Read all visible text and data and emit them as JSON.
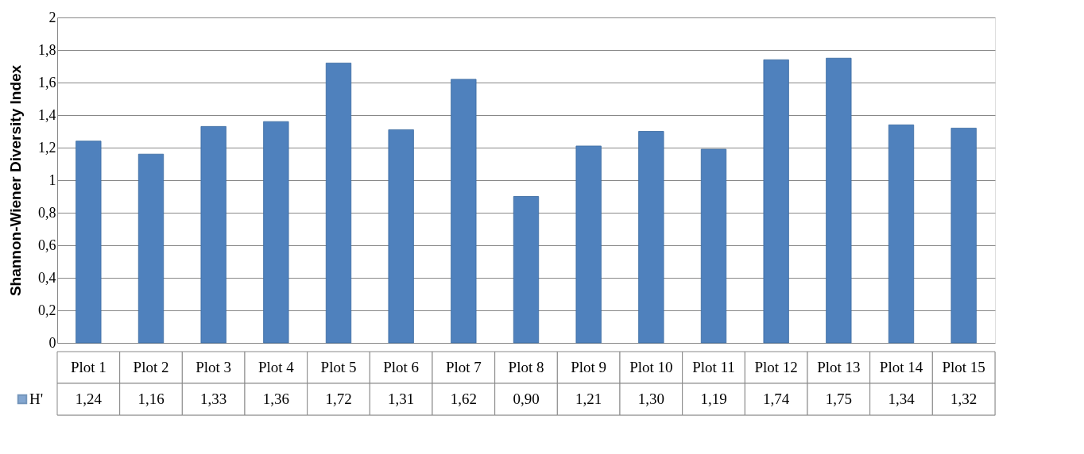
{
  "chart_data": {
    "type": "bar",
    "ylabel": "Shannon-Wiener Diversity Index",
    "categories": [
      "Plot 1",
      "Plot 2",
      "Plot 3",
      "Plot 4",
      "Plot 5",
      "Plot 6",
      "Plot 7",
      "Plot 8",
      "Plot 9",
      "Plot 10",
      "Plot 11",
      "Plot 12",
      "Plot 13",
      "Plot 14",
      "Plot 15"
    ],
    "series": [
      {
        "name": "H'",
        "color": "#4f81bd",
        "values": [
          1.24,
          1.16,
          1.33,
          1.36,
          1.72,
          1.31,
          1.62,
          0.9,
          1.21,
          1.3,
          1.19,
          1.74,
          1.75,
          1.34,
          1.32
        ],
        "value_labels": [
          "1,24",
          "1,16",
          "1,33",
          "1,36",
          "1,72",
          "1,31",
          "1,62",
          "0,90",
          "1,21",
          "1,30",
          "1,19",
          "1,74",
          "1,75",
          "1,34",
          "1,32"
        ]
      }
    ],
    "ylim": [
      0,
      2
    ],
    "yticks": [
      0,
      {
        "value": 0.2,
        "label": "0,2"
      },
      {
        "value": 0.4,
        "label": "0,4"
      },
      {
        "value": 0.6,
        "label": "0,6"
      },
      {
        "value": 0.8,
        "label": "0,8"
      },
      1,
      {
        "value": 1.2,
        "label": "1,2"
      },
      {
        "value": 1.4,
        "label": "1,4"
      },
      {
        "value": 1.6,
        "label": "1,6"
      },
      {
        "value": 1.8,
        "label": "1,8"
      },
      2
    ],
    "grid": "y",
    "legend": "bottom left"
  }
}
